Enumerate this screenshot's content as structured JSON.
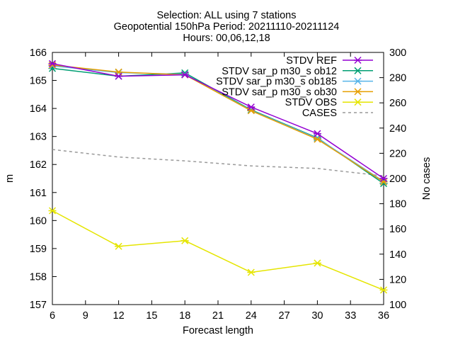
{
  "chart_data": {
    "type": "line",
    "title_lines": [
      "Selection: ALL using     7 stations",
      "Geopotential 150hPa   Period: 20211110-20211124",
      "Hours: 00,06,12,18"
    ],
    "xlabel": "Forecast length",
    "ylabel": "m",
    "y2label": "No cases",
    "xlim": [
      6,
      36
    ],
    "ylim": [
      157,
      166
    ],
    "y2lim": [
      100,
      300
    ],
    "xticks": [
      6,
      9,
      12,
      15,
      18,
      21,
      24,
      27,
      30,
      33,
      36
    ],
    "yticks": [
      157,
      158,
      159,
      160,
      161,
      162,
      163,
      164,
      165,
      166
    ],
    "y2ticks": [
      100,
      120,
      140,
      160,
      180,
      200,
      220,
      240,
      260,
      280,
      300
    ],
    "legend_position": "top-right",
    "grid": false,
    "x": [
      6,
      12,
      18,
      24,
      30,
      36
    ],
    "series": [
      {
        "name": "STDV REF",
        "axis": "y1",
        "color": "#9400d3",
        "marker": "x",
        "values": [
          165.6,
          165.15,
          165.2,
          164.05,
          163.1,
          161.5
        ]
      },
      {
        "name": "STDV sar_p m30_s ob12",
        "axis": "y1",
        "color": "#009e73",
        "marker": "x",
        "values": [
          165.43,
          165.15,
          165.27,
          163.95,
          162.95,
          161.32
        ]
      },
      {
        "name": "STDV sar_p m30_s ob185",
        "axis": "y1",
        "color": "#56b4e9",
        "marker": "x",
        "values": [
          165.52,
          165.28,
          165.22,
          163.93,
          162.93,
          161.4
        ]
      },
      {
        "name": "STDV sar_p m30_s ob30",
        "axis": "y1",
        "color": "#e69f00",
        "marker": "x",
        "values": [
          165.55,
          165.3,
          165.2,
          163.92,
          162.9,
          161.38
        ]
      },
      {
        "name": "STDV OBS",
        "axis": "y1",
        "color": "#e5e500",
        "marker": "x",
        "values": [
          160.35,
          159.08,
          159.28,
          158.15,
          158.48,
          157.52
        ]
      },
      {
        "name": "CASES",
        "axis": "y2",
        "color": "#999999",
        "marker": "none",
        "dashed": true,
        "values": [
          223,
          217,
          214,
          210,
          208,
          202
        ]
      }
    ]
  }
}
